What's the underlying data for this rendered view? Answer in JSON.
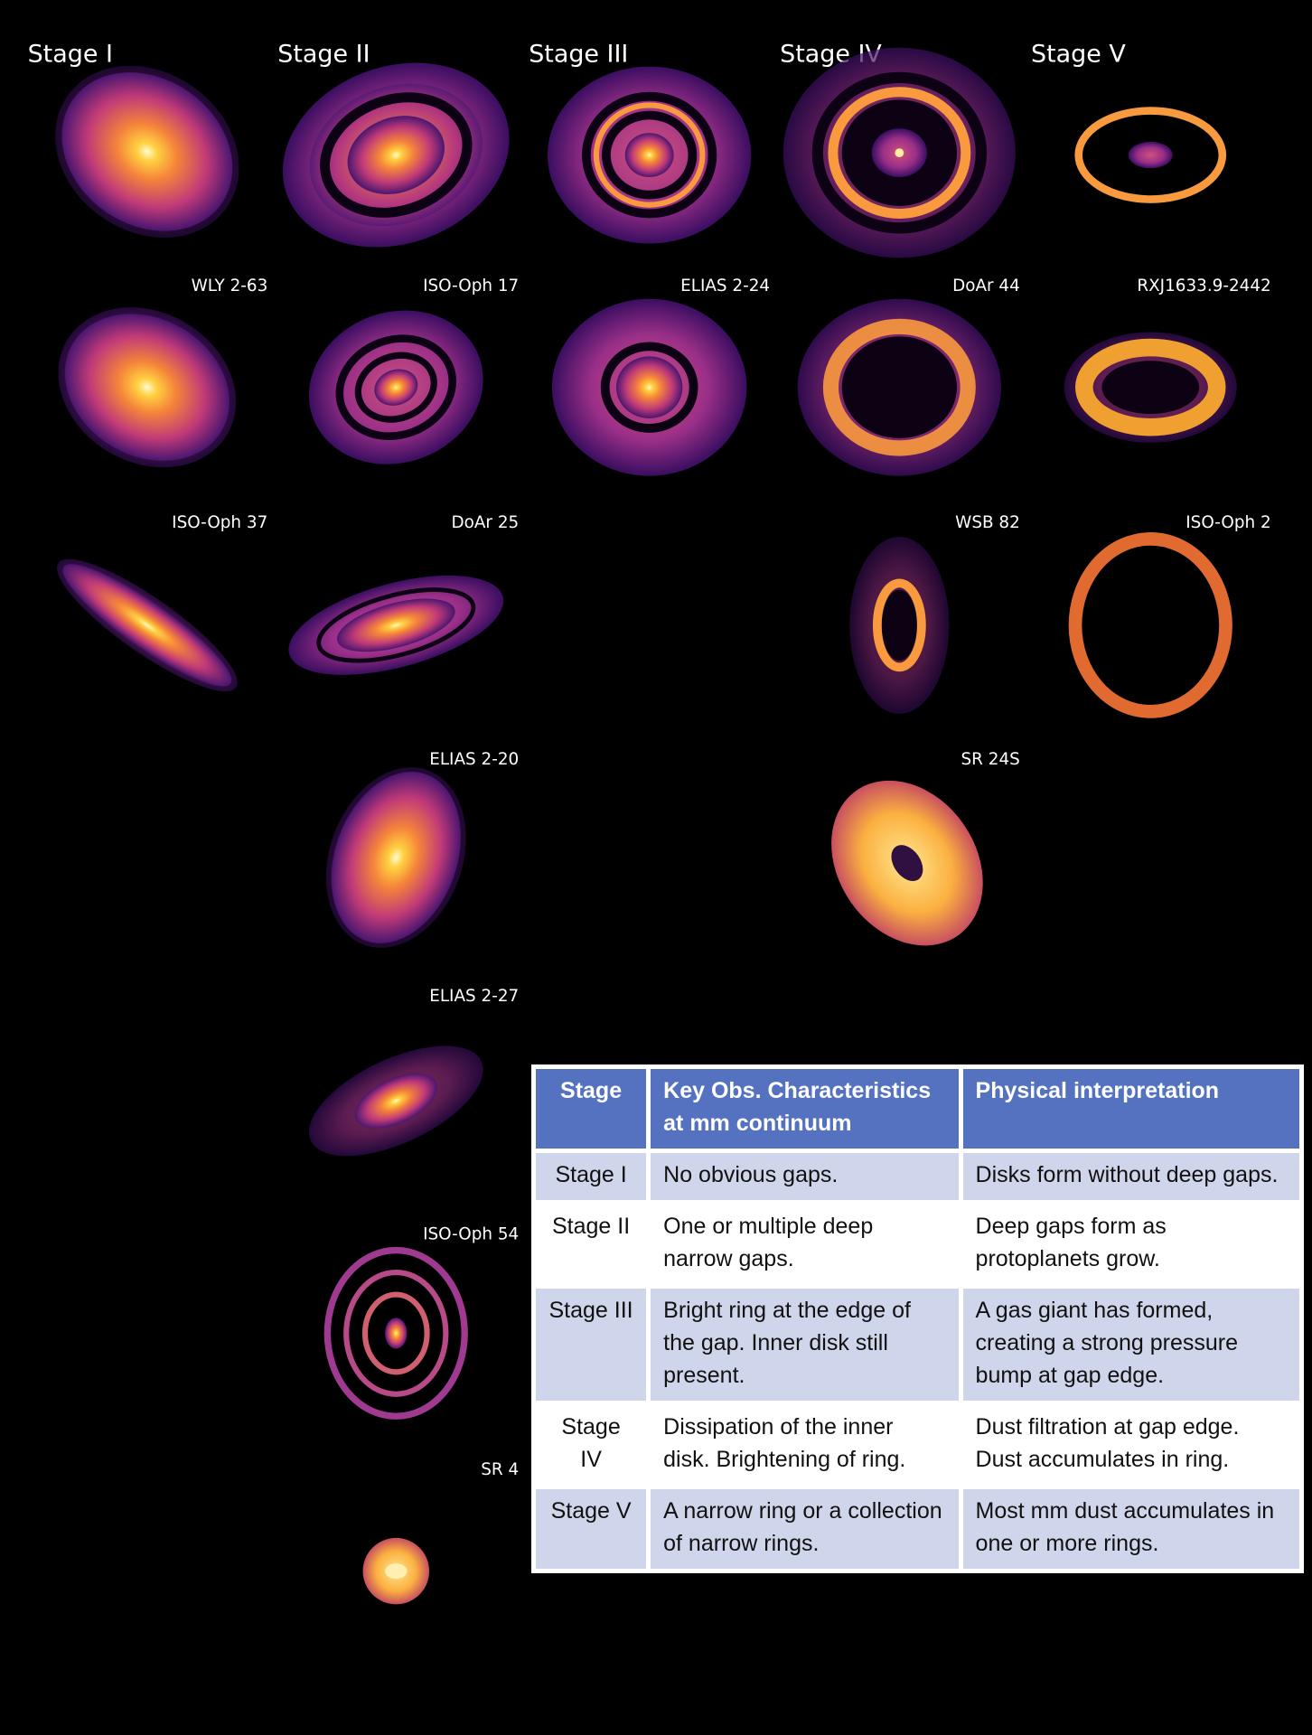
{
  "stages": [
    "Stage I",
    "Stage II",
    "Stage III",
    "Stage IV",
    "Stage V"
  ],
  "panels": [
    {
      "label": "WLY 2-63"
    },
    {
      "label": "ISO-Oph 17"
    },
    {
      "label": "ELIAS 2-24"
    },
    {
      "label": "DoAr 44"
    },
    {
      "label": "RXJ1633.9-2442"
    },
    {
      "label": "ISO-Oph 37"
    },
    {
      "label": "DoAr 25"
    },
    {
      "label": "WSB 82"
    },
    {
      "label": "ISO-Oph 2"
    },
    {
      "label": "ELIAS 2-20"
    },
    {
      "label": "SR 24S"
    },
    {
      "label": "ELIAS 2-27"
    },
    {
      "label": "ISO-Oph 54"
    },
    {
      "label": "SR 4"
    }
  ],
  "table": {
    "header": [
      "Stage",
      "Key Obs. Characteristics at mm continuum",
      "Physical interpretation"
    ],
    "rows": [
      [
        "Stage I",
        "No obvious gaps.",
        "Disks form without deep gaps."
      ],
      [
        "Stage II",
        "One or multiple deep narrow gaps.",
        "Deep gaps form as protoplanets  grow."
      ],
      [
        "Stage III",
        "Bright ring at the edge of the gap.  Inner disk still present.",
        "A gas giant has formed, creating a strong pressure bump at gap edge."
      ],
      [
        "Stage IV",
        "Dissipation of the inner disk. Brightening  of ring.",
        "Dust filtration at gap edge. Dust accumulates in ring."
      ],
      [
        "Stage V",
        "A narrow ring or a collection of narrow rings.",
        "Most mm dust accumulates in one or more rings."
      ]
    ]
  }
}
